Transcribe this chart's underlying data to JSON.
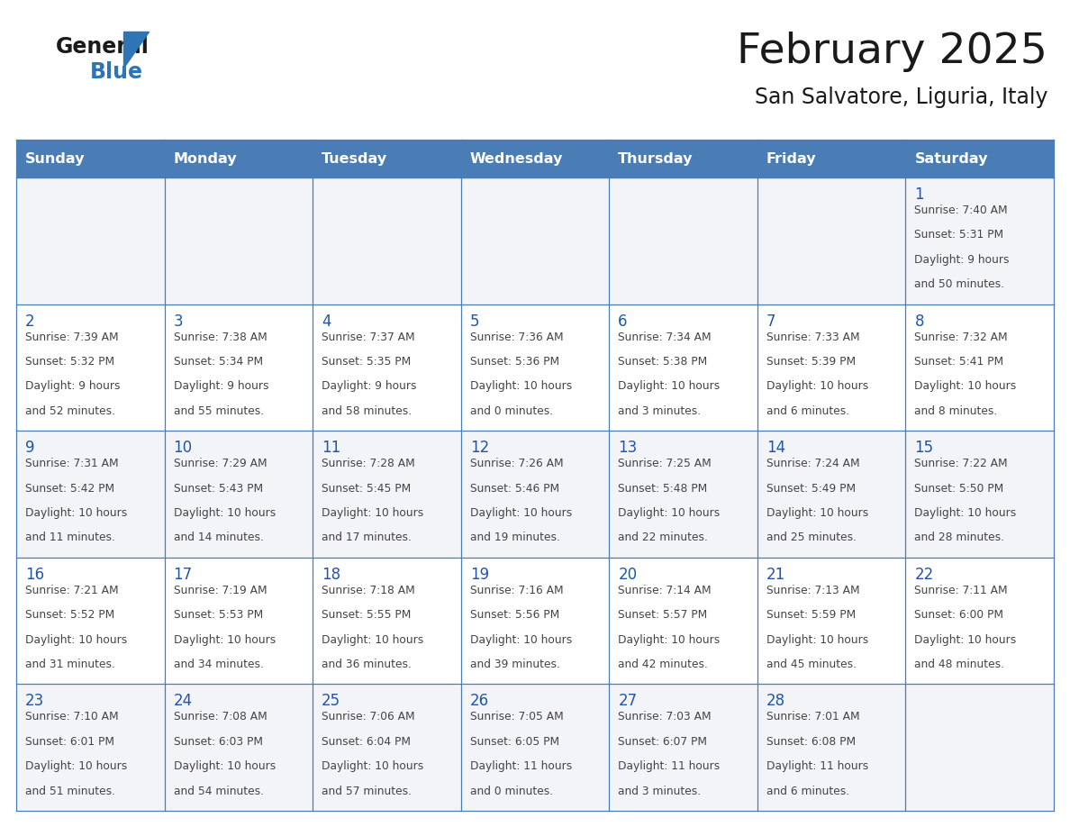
{
  "title": "February 2025",
  "subtitle": "San Salvatore, Liguria, Italy",
  "header_bg": "#4a7db5",
  "header_text": "#ffffff",
  "cell_bg_odd": "#f2f4f7",
  "cell_bg_even": "#ffffff",
  "border_color": "#4a7db5",
  "text_color": "#444444",
  "day_number_color": "#2255aa",
  "day_headers": [
    "Sunday",
    "Monday",
    "Tuesday",
    "Wednesday",
    "Thursday",
    "Friday",
    "Saturday"
  ],
  "weeks": [
    [
      {
        "day": null,
        "sunrise": null,
        "sunset": null,
        "daylight_line1": null,
        "daylight_line2": null
      },
      {
        "day": null,
        "sunrise": null,
        "sunset": null,
        "daylight_line1": null,
        "daylight_line2": null
      },
      {
        "day": null,
        "sunrise": null,
        "sunset": null,
        "daylight_line1": null,
        "daylight_line2": null
      },
      {
        "day": null,
        "sunrise": null,
        "sunset": null,
        "daylight_line1": null,
        "daylight_line2": null
      },
      {
        "day": null,
        "sunrise": null,
        "sunset": null,
        "daylight_line1": null,
        "daylight_line2": null
      },
      {
        "day": null,
        "sunrise": null,
        "sunset": null,
        "daylight_line1": null,
        "daylight_line2": null
      },
      {
        "day": "1",
        "sunrise": "Sunrise: 7:40 AM",
        "sunset": "Sunset: 5:31 PM",
        "daylight_line1": "Daylight: 9 hours",
        "daylight_line2": "and 50 minutes."
      }
    ],
    [
      {
        "day": "2",
        "sunrise": "Sunrise: 7:39 AM",
        "sunset": "Sunset: 5:32 PM",
        "daylight_line1": "Daylight: 9 hours",
        "daylight_line2": "and 52 minutes."
      },
      {
        "day": "3",
        "sunrise": "Sunrise: 7:38 AM",
        "sunset": "Sunset: 5:34 PM",
        "daylight_line1": "Daylight: 9 hours",
        "daylight_line2": "and 55 minutes."
      },
      {
        "day": "4",
        "sunrise": "Sunrise: 7:37 AM",
        "sunset": "Sunset: 5:35 PM",
        "daylight_line1": "Daylight: 9 hours",
        "daylight_line2": "and 58 minutes."
      },
      {
        "day": "5",
        "sunrise": "Sunrise: 7:36 AM",
        "sunset": "Sunset: 5:36 PM",
        "daylight_line1": "Daylight: 10 hours",
        "daylight_line2": "and 0 minutes."
      },
      {
        "day": "6",
        "sunrise": "Sunrise: 7:34 AM",
        "sunset": "Sunset: 5:38 PM",
        "daylight_line1": "Daylight: 10 hours",
        "daylight_line2": "and 3 minutes."
      },
      {
        "day": "7",
        "sunrise": "Sunrise: 7:33 AM",
        "sunset": "Sunset: 5:39 PM",
        "daylight_line1": "Daylight: 10 hours",
        "daylight_line2": "and 6 minutes."
      },
      {
        "day": "8",
        "sunrise": "Sunrise: 7:32 AM",
        "sunset": "Sunset: 5:41 PM",
        "daylight_line1": "Daylight: 10 hours",
        "daylight_line2": "and 8 minutes."
      }
    ],
    [
      {
        "day": "9",
        "sunrise": "Sunrise: 7:31 AM",
        "sunset": "Sunset: 5:42 PM",
        "daylight_line1": "Daylight: 10 hours",
        "daylight_line2": "and 11 minutes."
      },
      {
        "day": "10",
        "sunrise": "Sunrise: 7:29 AM",
        "sunset": "Sunset: 5:43 PM",
        "daylight_line1": "Daylight: 10 hours",
        "daylight_line2": "and 14 minutes."
      },
      {
        "day": "11",
        "sunrise": "Sunrise: 7:28 AM",
        "sunset": "Sunset: 5:45 PM",
        "daylight_line1": "Daylight: 10 hours",
        "daylight_line2": "and 17 minutes."
      },
      {
        "day": "12",
        "sunrise": "Sunrise: 7:26 AM",
        "sunset": "Sunset: 5:46 PM",
        "daylight_line1": "Daylight: 10 hours",
        "daylight_line2": "and 19 minutes."
      },
      {
        "day": "13",
        "sunrise": "Sunrise: 7:25 AM",
        "sunset": "Sunset: 5:48 PM",
        "daylight_line1": "Daylight: 10 hours",
        "daylight_line2": "and 22 minutes."
      },
      {
        "day": "14",
        "sunrise": "Sunrise: 7:24 AM",
        "sunset": "Sunset: 5:49 PM",
        "daylight_line1": "Daylight: 10 hours",
        "daylight_line2": "and 25 minutes."
      },
      {
        "day": "15",
        "sunrise": "Sunrise: 7:22 AM",
        "sunset": "Sunset: 5:50 PM",
        "daylight_line1": "Daylight: 10 hours",
        "daylight_line2": "and 28 minutes."
      }
    ],
    [
      {
        "day": "16",
        "sunrise": "Sunrise: 7:21 AM",
        "sunset": "Sunset: 5:52 PM",
        "daylight_line1": "Daylight: 10 hours",
        "daylight_line2": "and 31 minutes."
      },
      {
        "day": "17",
        "sunrise": "Sunrise: 7:19 AM",
        "sunset": "Sunset: 5:53 PM",
        "daylight_line1": "Daylight: 10 hours",
        "daylight_line2": "and 34 minutes."
      },
      {
        "day": "18",
        "sunrise": "Sunrise: 7:18 AM",
        "sunset": "Sunset: 5:55 PM",
        "daylight_line1": "Daylight: 10 hours",
        "daylight_line2": "and 36 minutes."
      },
      {
        "day": "19",
        "sunrise": "Sunrise: 7:16 AM",
        "sunset": "Sunset: 5:56 PM",
        "daylight_line1": "Daylight: 10 hours",
        "daylight_line2": "and 39 minutes."
      },
      {
        "day": "20",
        "sunrise": "Sunrise: 7:14 AM",
        "sunset": "Sunset: 5:57 PM",
        "daylight_line1": "Daylight: 10 hours",
        "daylight_line2": "and 42 minutes."
      },
      {
        "day": "21",
        "sunrise": "Sunrise: 7:13 AM",
        "sunset": "Sunset: 5:59 PM",
        "daylight_line1": "Daylight: 10 hours",
        "daylight_line2": "and 45 minutes."
      },
      {
        "day": "22",
        "sunrise": "Sunrise: 7:11 AM",
        "sunset": "Sunset: 6:00 PM",
        "daylight_line1": "Daylight: 10 hours",
        "daylight_line2": "and 48 minutes."
      }
    ],
    [
      {
        "day": "23",
        "sunrise": "Sunrise: 7:10 AM",
        "sunset": "Sunset: 6:01 PM",
        "daylight_line1": "Daylight: 10 hours",
        "daylight_line2": "and 51 minutes."
      },
      {
        "day": "24",
        "sunrise": "Sunrise: 7:08 AM",
        "sunset": "Sunset: 6:03 PM",
        "daylight_line1": "Daylight: 10 hours",
        "daylight_line2": "and 54 minutes."
      },
      {
        "day": "25",
        "sunrise": "Sunrise: 7:06 AM",
        "sunset": "Sunset: 6:04 PM",
        "daylight_line1": "Daylight: 10 hours",
        "daylight_line2": "and 57 minutes."
      },
      {
        "day": "26",
        "sunrise": "Sunrise: 7:05 AM",
        "sunset": "Sunset: 6:05 PM",
        "daylight_line1": "Daylight: 11 hours",
        "daylight_line2": "and 0 minutes."
      },
      {
        "day": "27",
        "sunrise": "Sunrise: 7:03 AM",
        "sunset": "Sunset: 6:07 PM",
        "daylight_line1": "Daylight: 11 hours",
        "daylight_line2": "and 3 minutes."
      },
      {
        "day": "28",
        "sunrise": "Sunrise: 7:01 AM",
        "sunset": "Sunset: 6:08 PM",
        "daylight_line1": "Daylight: 11 hours",
        "daylight_line2": "and 6 minutes."
      },
      {
        "day": null,
        "sunrise": null,
        "sunset": null,
        "daylight_line1": null,
        "daylight_line2": null
      }
    ]
  ]
}
